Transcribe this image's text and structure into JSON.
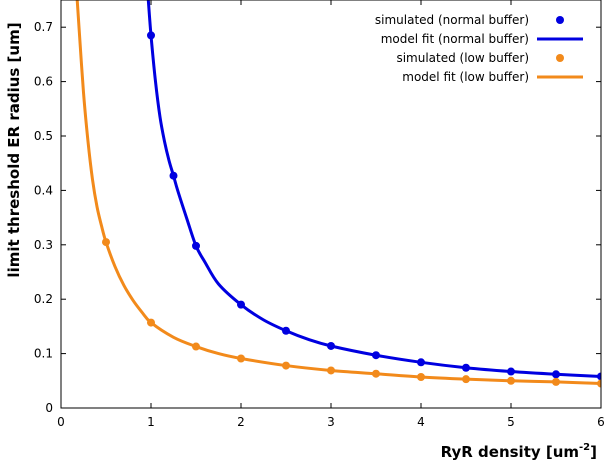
{
  "chart_data": {
    "type": "line",
    "xlabel_text": "RyR density [um",
    "xlabel_sup": "-2",
    "xlabel_close": "]",
    "ylabel": "limit threshold ER radius [um]",
    "xlim": [
      0,
      6
    ],
    "ylim": [
      0,
      0.75
    ],
    "x_ticks": [
      0,
      1,
      2,
      3,
      4,
      5,
      6
    ],
    "y_ticks": [
      0,
      0.1,
      0.2,
      0.3,
      0.4,
      0.5,
      0.6,
      0.7
    ],
    "x_tick_labels": [
      "0",
      "1",
      "2",
      "3",
      "4",
      "5",
      "6"
    ],
    "y_tick_labels": [
      "0",
      "0.1",
      "0.2",
      "0.3",
      "0.4",
      "0.5",
      "0.6",
      "0.7"
    ],
    "grid": false,
    "legend_position": "top-right",
    "series": [
      {
        "name": "simulated (normal buffer)",
        "kind": "points",
        "color": "#0000e0",
        "x": [
          1,
          1.25,
          1.5,
          2,
          2.5,
          3,
          3.5,
          4,
          4.5,
          5,
          5.5,
          6
        ],
        "y": [
          0.685,
          0.427,
          0.298,
          0.19,
          0.142,
          0.114,
          0.097,
          0.084,
          0.074,
          0.067,
          0.062,
          0.058
        ]
      },
      {
        "name": "model fit (normal buffer)",
        "kind": "curve",
        "color": "#0000e0",
        "x": [
          0.97,
          1.0,
          1.05,
          1.1,
          1.15,
          1.2,
          1.25,
          1.3,
          1.4,
          1.5,
          1.6,
          1.75,
          2,
          2.25,
          2.5,
          2.75,
          3,
          3.5,
          4,
          4.5,
          5,
          5.5,
          6
        ],
        "y": [
          0.75,
          0.685,
          0.6,
          0.535,
          0.49,
          0.455,
          0.427,
          0.398,
          0.347,
          0.298,
          0.268,
          0.228,
          0.19,
          0.162,
          0.142,
          0.126,
          0.114,
          0.097,
          0.084,
          0.074,
          0.067,
          0.062,
          0.058
        ]
      },
      {
        "name": "simulated (low buffer)",
        "kind": "points",
        "color": "#f28a1b",
        "x": [
          0.5,
          1,
          1.5,
          2,
          2.5,
          3,
          3.5,
          4,
          4.5,
          5,
          5.5,
          6
        ],
        "y": [
          0.305,
          0.157,
          0.113,
          0.091,
          0.078,
          0.069,
          0.063,
          0.057,
          0.053,
          0.05,
          0.048,
          0.045
        ]
      },
      {
        "name": "model fit (low buffer)",
        "kind": "curve",
        "color": "#f28a1b",
        "x": [
          0.18,
          0.2,
          0.25,
          0.3,
          0.35,
          0.4,
          0.45,
          0.5,
          0.6,
          0.7,
          0.8,
          0.9,
          1,
          1.25,
          1.5,
          1.75,
          2,
          2.5,
          3,
          3.5,
          4,
          4.5,
          5,
          5.5,
          6
        ],
        "y": [
          0.75,
          0.7,
          0.58,
          0.49,
          0.42,
          0.37,
          0.335,
          0.305,
          0.26,
          0.225,
          0.198,
          0.176,
          0.157,
          0.13,
          0.113,
          0.1,
          0.091,
          0.078,
          0.069,
          0.063,
          0.057,
          0.053,
          0.05,
          0.048,
          0.045
        ]
      }
    ]
  }
}
